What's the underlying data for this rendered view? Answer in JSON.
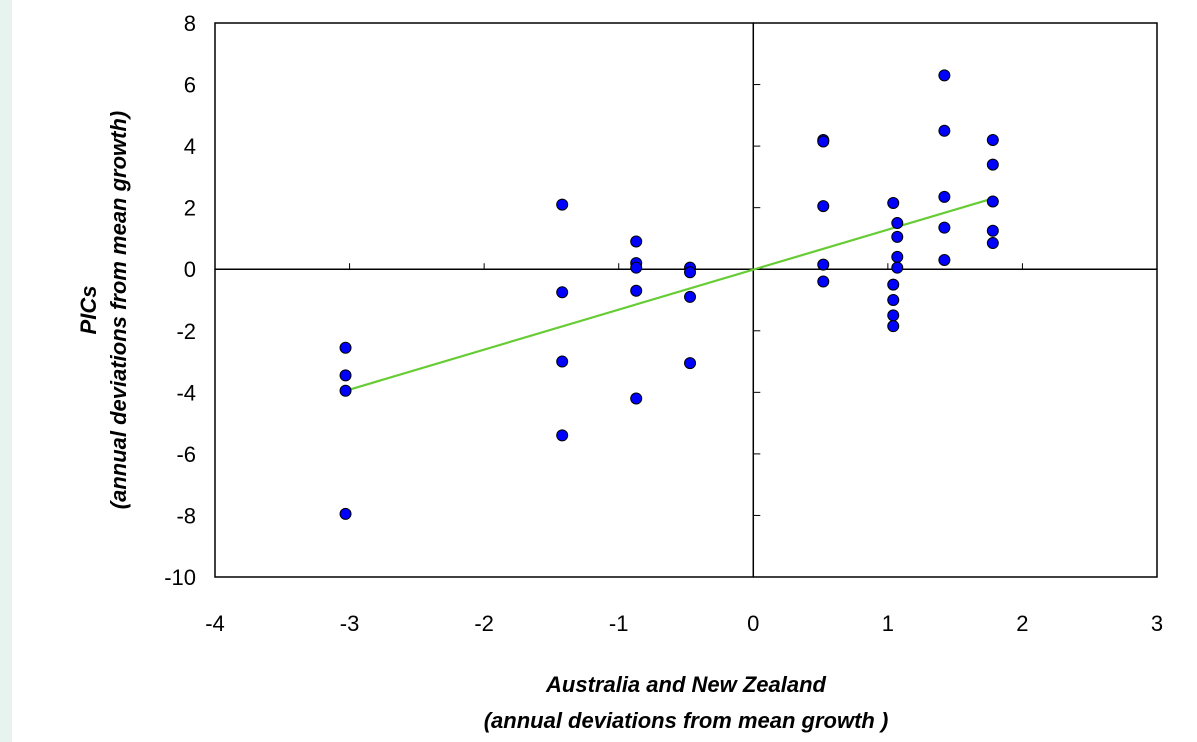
{
  "chart_data": {
    "type": "scatter",
    "xlabel": [
      "Australia and New Zealand",
      "(annual deviations from mean growth )"
    ],
    "ylabel": [
      "PICs",
      "(annual deviations from mean growth)"
    ],
    "xlim": [
      -4,
      3
    ],
    "ylim": [
      -10,
      8
    ],
    "x_ticks": [
      -4,
      -3,
      -2,
      -1,
      0,
      1,
      2,
      3
    ],
    "y_ticks": [
      -10,
      -8,
      -6,
      -4,
      -2,
      0,
      2,
      4,
      6,
      8
    ],
    "grid": false,
    "marker_color": "#0000ff",
    "trendline_color": "#66cc33",
    "series": [
      {
        "points": [
          [
            -3.03,
            -2.55
          ],
          [
            -3.03,
            -3.45
          ],
          [
            -3.03,
            -3.95
          ],
          [
            -3.03,
            -7.95
          ],
          [
            -1.42,
            2.1
          ],
          [
            -1.42,
            -0.75
          ],
          [
            -1.42,
            -3.0
          ],
          [
            -1.42,
            -5.4
          ],
          [
            -0.87,
            0.9
          ],
          [
            -0.87,
            0.2
          ],
          [
            -0.87,
            0.05
          ],
          [
            -0.87,
            -0.7
          ],
          [
            -0.87,
            -4.2
          ],
          [
            -0.47,
            0.05
          ],
          [
            -0.47,
            -0.1
          ],
          [
            -0.47,
            -0.9
          ],
          [
            -0.47,
            -3.05
          ],
          [
            0.52,
            4.2
          ],
          [
            0.52,
            4.15
          ],
          [
            0.52,
            2.05
          ],
          [
            0.52,
            0.15
          ],
          [
            0.52,
            -0.4
          ],
          [
            1.04,
            2.15
          ],
          [
            1.04,
            -0.5
          ],
          [
            1.04,
            -1.0
          ],
          [
            1.04,
            -1.5
          ],
          [
            1.04,
            -1.85
          ],
          [
            1.07,
            1.5
          ],
          [
            1.07,
            1.05
          ],
          [
            1.07,
            0.4
          ],
          [
            1.07,
            0.05
          ],
          [
            1.42,
            6.3
          ],
          [
            1.42,
            4.5
          ],
          [
            1.42,
            2.35
          ],
          [
            1.42,
            1.35
          ],
          [
            1.42,
            0.3
          ],
          [
            1.78,
            4.2
          ],
          [
            1.78,
            3.4
          ],
          [
            1.78,
            2.2
          ],
          [
            1.78,
            1.25
          ],
          [
            1.78,
            0.85
          ]
        ]
      }
    ],
    "trendline": {
      "x": [
        -3.03,
        1.78
      ],
      "y": [
        -3.95,
        2.3
      ]
    }
  }
}
